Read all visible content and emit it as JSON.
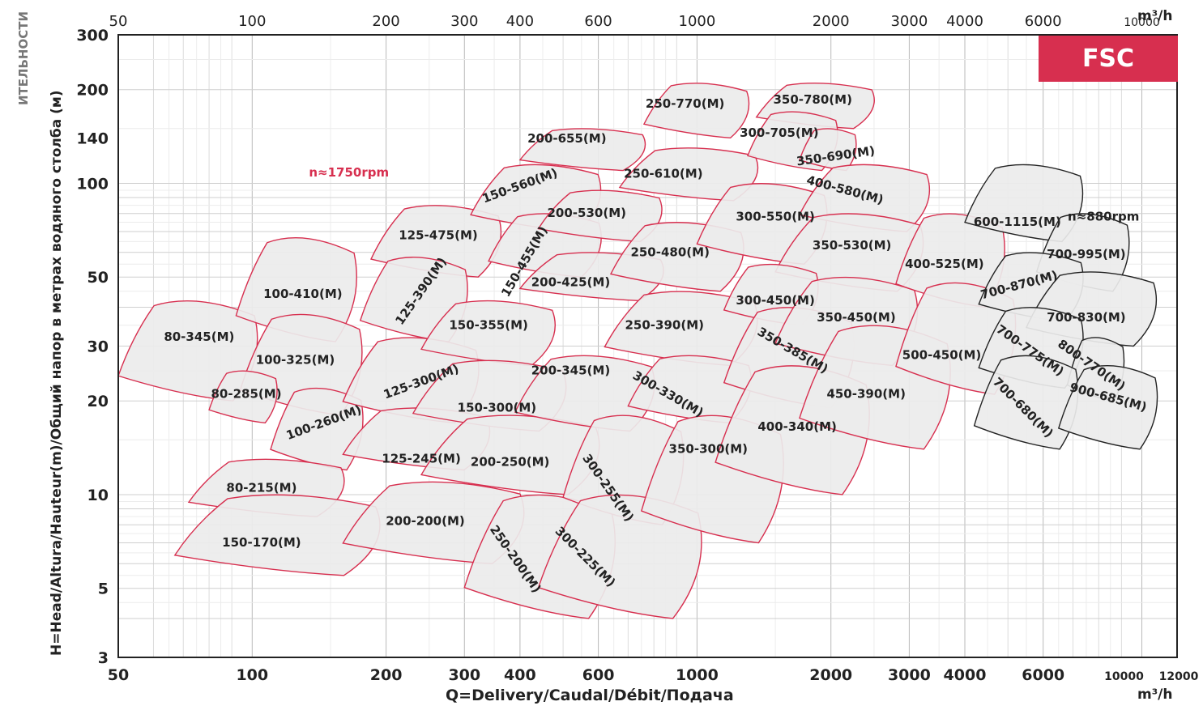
{
  "badge": "FSC",
  "ylabel": "H=Head/Altura/Hauteur(m)/Общий напор в метрах водяного столба (м)",
  "ylabel_cut": "ИТЕЛЬНОСТИ",
  "xlabel": "Q=Delivery/Caudal/Débit/Подача",
  "unit_top": "m³/h",
  "unit_bottom": "m³/h",
  "colors": {
    "red": "#d72f4f",
    "dark": "#222222",
    "fill": "#ececec",
    "grid": "#c8c8c8"
  },
  "chart_data": {
    "type": "area",
    "title": "",
    "xscale": "log",
    "yscale": "log",
    "xlim": [
      50,
      12000
    ],
    "ylim": [
      3,
      300
    ],
    "grid": true,
    "x_ticks_top": [
      "50",
      "100",
      "200",
      "300",
      "400",
      "600",
      "1000",
      "2000",
      "3000",
      "4000",
      "6000",
      "10000"
    ],
    "x_ticks_bottom": [
      "50",
      "100",
      "200",
      "300",
      "400",
      "600",
      "1000",
      "2000",
      "3000",
      "4000",
      "6000",
      "10000",
      "12000"
    ],
    "y_ticks": [
      "3",
      "5",
      "10",
      "20",
      "30",
      "50",
      "100",
      "140",
      "200",
      "300"
    ],
    "speed_labels": [
      {
        "text": "n≈1750rpm",
        "q": 165,
        "h": 108,
        "color": "red"
      },
      {
        "text": "n≈880rpm",
        "q": 8200,
        "h": 78,
        "color": "dark"
      }
    ],
    "series": [
      {
        "name": "80-345(M)",
        "q": [
          50,
          105
        ],
        "h": [
          20,
          42
        ],
        "label_q": 76,
        "label_h": 32,
        "rot": 0,
        "color": "red"
      },
      {
        "name": "100-410(M)",
        "q": [
          92,
          175
        ],
        "h": [
          31,
          67
        ],
        "label_q": 130,
        "label_h": 44,
        "rot": 0,
        "color": "red"
      },
      {
        "name": "100-325(M)",
        "q": [
          94,
          180
        ],
        "h": [
          18,
          38
        ],
        "label_q": 125,
        "label_h": 27,
        "rot": 0,
        "color": "red"
      },
      {
        "name": "80-285(M)",
        "q": [
          80,
          115
        ],
        "h": [
          17,
          25
        ],
        "label_q": 97,
        "label_h": 21,
        "rot": 0,
        "color": "red"
      },
      {
        "name": "100-260(M)",
        "q": [
          110,
          180
        ],
        "h": [
          12,
          22
        ],
        "label_q": 145,
        "label_h": 17,
        "rot": -20,
        "color": "red"
      },
      {
        "name": "80-215(M)",
        "q": [
          72,
          165
        ],
        "h": [
          8.5,
          13
        ],
        "label_q": 105,
        "label_h": 10.5,
        "rot": 0,
        "color": "red"
      },
      {
        "name": "150-170(M)",
        "q": [
          67,
          200
        ],
        "h": [
          5.5,
          10
        ],
        "label_q": 105,
        "label_h": 7,
        "rot": 0,
        "color": "red"
      },
      {
        "name": "125-475(M)",
        "q": [
          185,
          370
        ],
        "h": [
          50,
          85
        ],
        "label_q": 262,
        "label_h": 68,
        "rot": 0,
        "color": "red"
      },
      {
        "name": "125-390(M)",
        "q": [
          175,
          310
        ],
        "h": [
          31,
          58
        ],
        "label_q": 240,
        "label_h": 45,
        "rot": -55,
        "color": "red"
      },
      {
        "name": "125-300(M)",
        "q": [
          160,
          330
        ],
        "h": [
          17,
          32
        ],
        "label_q": 240,
        "label_h": 23,
        "rot": -20,
        "color": "red"
      },
      {
        "name": "125-245(M)",
        "q": [
          160,
          350
        ],
        "h": [
          12,
          19
        ],
        "label_q": 240,
        "label_h": 13,
        "rot": 0,
        "color": "red"
      },
      {
        "name": "200-200(M)",
        "q": [
          160,
          420
        ],
        "h": [
          6,
          11
        ],
        "label_q": 245,
        "label_h": 8.2,
        "rot": 0,
        "color": "red"
      },
      {
        "name": "150-560(M)",
        "q": [
          310,
          620
        ],
        "h": [
          70,
          115
        ],
        "label_q": 400,
        "label_h": 98,
        "rot": -20,
        "color": "red"
      },
      {
        "name": "150-455(M)",
        "q": [
          340,
          620
        ],
        "h": [
          50,
          80
        ],
        "label_q": 410,
        "label_h": 56,
        "rot": -60,
        "color": "red"
      },
      {
        "name": "150-355(M)",
        "q": [
          240,
          490
        ],
        "h": [
          26,
          42
        ],
        "label_q": 340,
        "label_h": 35,
        "rot": 0,
        "color": "red"
      },
      {
        "name": "150-300(M)",
        "q": [
          230,
          520
        ],
        "h": [
          16,
          27
        ],
        "label_q": 355,
        "label_h": 19,
        "rot": 0,
        "color": "red"
      },
      {
        "name": "200-250(M)",
        "q": [
          240,
          620
        ],
        "h": [
          10,
          18
        ],
        "label_q": 380,
        "label_h": 12.7,
        "rot": 0,
        "color": "red"
      },
      {
        "name": "250-200(M)",
        "q": [
          300,
          670
        ],
        "h": [
          4,
          10
        ],
        "label_q": 390,
        "label_h": 6.2,
        "rot": 55,
        "color": "red"
      },
      {
        "name": "200-655(M)",
        "q": [
          400,
          780
        ],
        "h": [
          110,
          150
        ],
        "label_q": 510,
        "label_h": 139,
        "rot": 0,
        "color": "red"
      },
      {
        "name": "200-530(M)",
        "q": [
          440,
          850
        ],
        "h": [
          65,
          95
        ],
        "label_q": 565,
        "label_h": 80,
        "rot": 0,
        "color": "red"
      },
      {
        "name": "200-425(M)",
        "q": [
          400,
          860
        ],
        "h": [
          42,
          60
        ],
        "label_q": 520,
        "label_h": 48,
        "rot": 0,
        "color": "red"
      },
      {
        "name": "200-345(M)",
        "q": [
          390,
          820
        ],
        "h": [
          16,
          28
        ],
        "label_q": 520,
        "label_h": 25,
        "rot": 0,
        "color": "red"
      },
      {
        "name": "300-255(M)",
        "q": [
          500,
          950
        ],
        "h": [
          8,
          18
        ],
        "label_q": 630,
        "label_h": 10.5,
        "rot": 55,
        "color": "red"
      },
      {
        "name": "300-225(M)",
        "q": [
          440,
          1050
        ],
        "h": [
          4,
          10
        ],
        "label_q": 560,
        "label_h": 6.3,
        "rot": 45,
        "color": "red"
      },
      {
        "name": "250-770(M)",
        "q": [
          760,
          1330
        ],
        "h": [
          140,
          210
        ],
        "label_q": 940,
        "label_h": 180,
        "rot": 0,
        "color": "red"
      },
      {
        "name": "250-610(M)",
        "q": [
          670,
          1400
        ],
        "h": [
          88,
          130
        ],
        "label_q": 840,
        "label_h": 107,
        "rot": 0,
        "color": "red"
      },
      {
        "name": "250-480(M)",
        "q": [
          640,
          1300
        ],
        "h": [
          45,
          75
        ],
        "label_q": 870,
        "label_h": 60,
        "rot": 0,
        "color": "red"
      },
      {
        "name": "250-390(M)",
        "q": [
          620,
          1400
        ],
        "h": [
          26,
          45
        ],
        "label_q": 845,
        "label_h": 35,
        "rot": 0,
        "color": "red"
      },
      {
        "name": "300-330(M)",
        "q": [
          700,
          1350
        ],
        "h": [
          17,
          28
        ],
        "label_q": 860,
        "label_h": 21,
        "rot": 30,
        "color": "red"
      },
      {
        "name": "350-300(M)",
        "q": [
          750,
          1600
        ],
        "h": [
          7,
          18
        ],
        "label_q": 1060,
        "label_h": 14,
        "rot": 0,
        "color": "red"
      },
      {
        "name": "350-780(M)",
        "q": [
          1360,
          2550
        ],
        "h": [
          150,
          210
        ],
        "label_q": 1820,
        "label_h": 185,
        "rot": 0,
        "color": "red"
      },
      {
        "name": "300-705(M)",
        "q": [
          1300,
          2100
        ],
        "h": [
          110,
          170
        ],
        "label_q": 1530,
        "label_h": 145,
        "rot": 0,
        "color": "red"
      },
      {
        "name": "350-690(M)",
        "q": [
          1700,
          2300
        ],
        "h": [
          110,
          150
        ],
        "label_q": 2050,
        "label_h": 122,
        "rot": -8,
        "color": "red"
      },
      {
        "name": "300-550(M)",
        "q": [
          1000,
          2000
        ],
        "h": [
          55,
          100
        ],
        "label_q": 1500,
        "label_h": 78,
        "rot": 0,
        "color": "red"
      },
      {
        "name": "400-580(M)",
        "q": [
          1700,
          3400
        ],
        "h": [
          70,
          115
        ],
        "label_q": 2150,
        "label_h": 95,
        "rot": 15,
        "color": "red"
      },
      {
        "name": "350-530(M)",
        "q": [
          1500,
          3300
        ],
        "h": [
          45,
          80
        ],
        "label_q": 2230,
        "label_h": 63,
        "rot": 0,
        "color": "red"
      },
      {
        "name": "300-450(M)",
        "q": [
          1150,
          1900
        ],
        "h": [
          35,
          55
        ],
        "label_q": 1500,
        "label_h": 42,
        "rot": 0,
        "color": "red"
      },
      {
        "name": "350-385(M)",
        "q": [
          1150,
          2300
        ],
        "h": [
          19,
          40
        ],
        "label_q": 1640,
        "label_h": 29,
        "rot": 30,
        "color": "red"
      },
      {
        "name": "400-340(M)",
        "q": [
          1100,
          2500
        ],
        "h": [
          10,
          26
        ],
        "label_q": 1680,
        "label_h": 16.5,
        "rot": 0,
        "color": "red"
      },
      {
        "name": "350-450(M)",
        "q": [
          1500,
          3200
        ],
        "h": [
          26,
          50
        ],
        "label_q": 2280,
        "label_h": 37,
        "rot": 0,
        "color": "red"
      },
      {
        "name": "450-390(M)",
        "q": [
          1700,
          3800
        ],
        "h": [
          14,
          35
        ],
        "label_q": 2400,
        "label_h": 21,
        "rot": 0,
        "color": "red"
      },
      {
        "name": "400-525(M)",
        "q": [
          2800,
          5000
        ],
        "h": [
          40,
          80
        ],
        "label_q": 3600,
        "label_h": 55,
        "rot": 0,
        "color": "red"
      },
      {
        "name": "500-450(M)",
        "q": [
          2800,
          5300
        ],
        "h": [
          21,
          48
        ],
        "label_q": 3550,
        "label_h": 28,
        "rot": 0,
        "color": "red"
      },
      {
        "name": "600-1115(M)",
        "q": [
          4000,
          7500
        ],
        "h": [
          65,
          115
        ],
        "label_q": 5250,
        "label_h": 75,
        "rot": 0,
        "color": "dark"
      },
      {
        "name": "700-995(M)",
        "q": [
          5800,
          9500
        ],
        "h": [
          45,
          80
        ],
        "label_q": 7500,
        "label_h": 59,
        "rot": 0,
        "color": "dark"
      },
      {
        "name": "700-870(M)",
        "q": [
          4300,
          7500
        ],
        "h": [
          36,
          60
        ],
        "label_q": 5300,
        "label_h": 47,
        "rot": -15,
        "color": "dark"
      },
      {
        "name": "700-830(M)",
        "q": [
          5500,
          11000
        ],
        "h": [
          30,
          52
        ],
        "label_q": 7500,
        "label_h": 37,
        "rot": 0,
        "color": "dark"
      },
      {
        "name": "700-775(M)",
        "q": [
          4300,
          7500
        ],
        "h": [
          22,
          40
        ],
        "label_q": 5600,
        "label_h": 29,
        "rot": 35,
        "color": "dark"
      },
      {
        "name": "800-770(M)",
        "q": [
          6800,
          9200
        ],
        "h": [
          20,
          32
        ],
        "label_q": 7700,
        "label_h": 26,
        "rot": 35,
        "color": "dark"
      },
      {
        "name": "700-680(M)",
        "q": [
          4200,
          7300
        ],
        "h": [
          14,
          28
        ],
        "label_q": 5400,
        "label_h": 19,
        "rot": 45,
        "color": "dark"
      },
      {
        "name": "900-685(M)",
        "q": [
          6500,
          11000
        ],
        "h": [
          14,
          26
        ],
        "label_q": 8400,
        "label_h": 20.5,
        "rot": 15,
        "color": "dark"
      }
    ]
  }
}
